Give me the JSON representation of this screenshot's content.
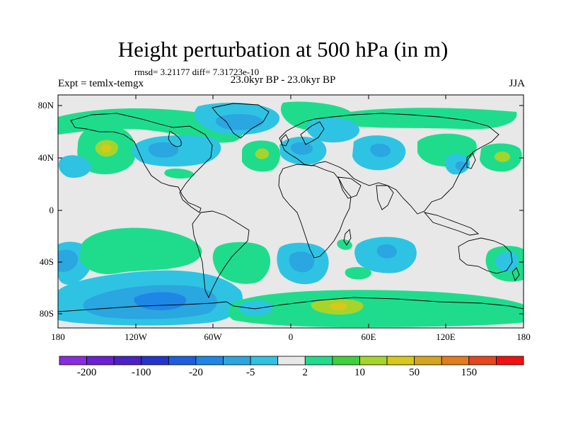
{
  "title": "Height perturbation at 500 hPa (in m)",
  "stats": "rmsd= 3.21177 diff= 7.31723e-10",
  "left_label": "Expt = temlx-temgx",
  "center_label": "23.0kyr BP - 23.0kyr BP",
  "right_label": "JJA",
  "lat_ticks": [
    "80N",
    "40N",
    "0",
    "40S",
    "80S"
  ],
  "lon_ticks": [
    "180",
    "120W",
    "60W",
    "0",
    "60E",
    "120E",
    "180"
  ],
  "colorbar": {
    "colors": [
      "#8a2be2",
      "#6b1fd6",
      "#4a22c8",
      "#2434cc",
      "#1c5ee0",
      "#1e86e6",
      "#2aa6e0",
      "#2fc3e3",
      "#e8e8e8",
      "#1fdc8c",
      "#3ed13a",
      "#a5d52a",
      "#d8c81a",
      "#d7a31f",
      "#e27c1f",
      "#e5451f",
      "#f21010"
    ],
    "labels": [
      "-200",
      "-100",
      "-20",
      "-5",
      "2",
      "10",
      "50",
      "150"
    ]
  },
  "field_colors": {
    "background": "#e8e8e8",
    "light_blue": "#2fc3e3",
    "mid_blue": "#2aa6e0",
    "deep_blue": "#1e86e6",
    "green": "#1fdc8c",
    "yellow_green": "#a5d52a",
    "yellow": "#d8c81a"
  }
}
